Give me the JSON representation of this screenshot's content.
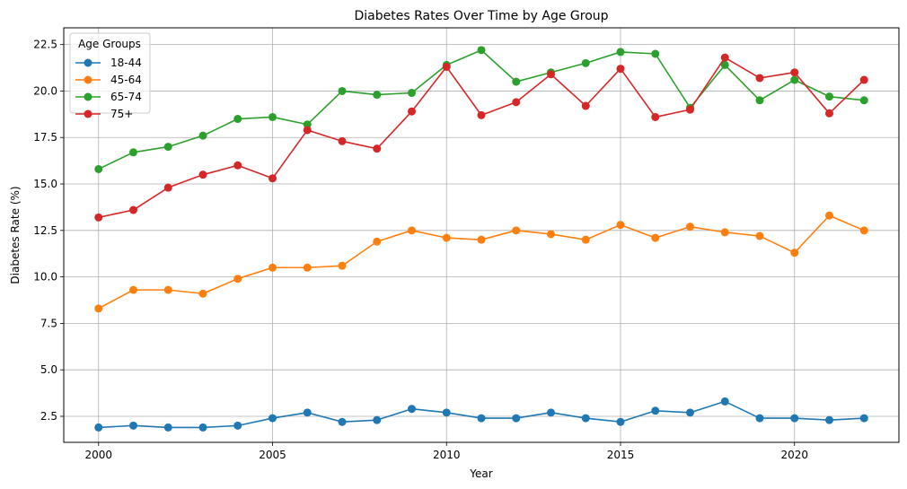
{
  "chart_data": {
    "type": "line",
    "title": "Diabetes Rates Over Time by Age Group",
    "xlabel": "Year",
    "ylabel": "Diabetes Rate (%)",
    "xlim": [
      1999.0,
      2023.0
    ],
    "ylim": [
      1.1,
      23.4
    ],
    "xticks": [
      2000,
      2005,
      2010,
      2015,
      2020
    ],
    "yticks": [
      2.5,
      5.0,
      7.5,
      10.0,
      12.5,
      15.0,
      17.5,
      20.0,
      22.5
    ],
    "ytick_labels": [
      "2.5",
      "5.0",
      "7.5",
      "10.0",
      "12.5",
      "15.0",
      "17.5",
      "20.0",
      "22.5"
    ],
    "grid": true,
    "legend_title": "Age Groups",
    "legend_position": "top-left",
    "x": [
      2000,
      2001,
      2002,
      2003,
      2004,
      2005,
      2006,
      2007,
      2008,
      2009,
      2010,
      2011,
      2012,
      2013,
      2014,
      2015,
      2016,
      2017,
      2018,
      2019,
      2020,
      2021,
      2022
    ],
    "series": [
      {
        "name": "18-44",
        "color": "#1f77b4",
        "values": [
          1.9,
          2.0,
          1.9,
          1.9,
          2.0,
          2.4,
          2.7,
          2.2,
          2.3,
          2.9,
          2.7,
          2.4,
          2.4,
          2.7,
          2.4,
          2.2,
          2.8,
          2.7,
          3.3,
          2.4,
          2.4,
          2.3,
          2.4
        ]
      },
      {
        "name": "45-64",
        "color": "#ff7f0e",
        "values": [
          8.3,
          9.3,
          9.3,
          9.1,
          9.9,
          10.5,
          10.5,
          10.6,
          11.9,
          12.5,
          12.1,
          12.0,
          12.5,
          12.3,
          12.0,
          12.8,
          12.1,
          12.7,
          12.4,
          12.2,
          11.3,
          13.3,
          12.5
        ]
      },
      {
        "name": "65-74",
        "color": "#2ca02c",
        "values": [
          15.8,
          16.7,
          17.0,
          17.6,
          18.5,
          18.6,
          18.2,
          20.0,
          19.8,
          19.9,
          21.4,
          22.2,
          20.5,
          21.0,
          21.5,
          22.1,
          22.0,
          19.1,
          21.4,
          19.5,
          20.6,
          19.7,
          19.5
        ]
      },
      {
        "name": "75+",
        "color": "#d62728",
        "values": [
          13.2,
          13.6,
          14.8,
          15.5,
          16.0,
          15.3,
          17.9,
          17.3,
          16.9,
          18.9,
          21.3,
          18.7,
          19.4,
          20.9,
          19.2,
          21.2,
          18.6,
          19.0,
          21.8,
          20.7,
          21.0,
          18.8,
          20.6
        ]
      }
    ]
  }
}
